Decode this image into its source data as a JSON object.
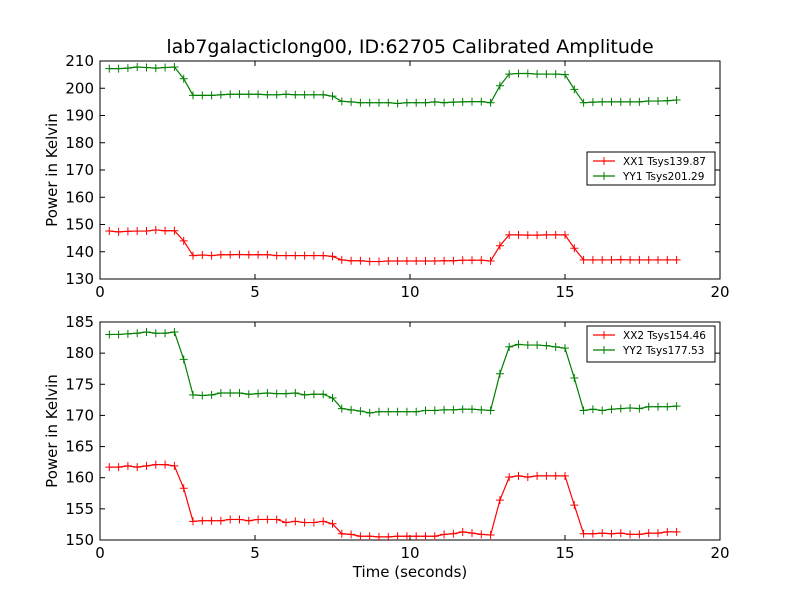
{
  "figure": {
    "title": "lab7galacticlong00, ID:62705 Calibrated Amplitude",
    "xlabel": "Time (seconds)"
  },
  "chart_data": [
    {
      "type": "line",
      "ylabel": "Power in Kelvin",
      "xlabel": "",
      "xlim": [
        0,
        20
      ],
      "ylim": [
        130,
        210
      ],
      "xticks": [
        0,
        5,
        10,
        15,
        20
      ],
      "yticks": [
        130,
        140,
        150,
        160,
        170,
        180,
        190,
        200,
        210
      ],
      "grid": false,
      "legend_position": "center-right",
      "x": [
        0.3,
        0.6,
        0.9,
        1.2,
        1.5,
        1.8,
        2.1,
        2.4,
        2.7,
        3.0,
        3.3,
        3.6,
        3.9,
        4.2,
        4.5,
        4.8,
        5.1,
        5.4,
        5.7,
        6.0,
        6.3,
        6.6,
        6.9,
        7.2,
        7.5,
        7.8,
        8.1,
        8.4,
        8.7,
        9.0,
        9.3,
        9.6,
        9.9,
        10.2,
        10.5,
        10.8,
        11.1,
        11.4,
        11.7,
        12.0,
        12.3,
        12.6,
        12.9,
        13.2,
        13.5,
        13.8,
        14.1,
        14.4,
        14.7,
        15.0,
        15.3,
        15.6,
        15.9,
        16.2,
        16.5,
        16.8,
        17.1,
        17.4,
        17.7,
        18.0,
        18.3,
        18.6
      ],
      "series": [
        {
          "name": "XX1 Tsys139.87",
          "color": "#ff0000",
          "values": [
            147.6,
            147.3,
            147.5,
            147.6,
            147.6,
            148.0,
            147.7,
            147.7,
            144.0,
            138.6,
            138.8,
            138.6,
            138.9,
            138.9,
            139.0,
            138.9,
            138.9,
            138.9,
            138.6,
            138.6,
            138.6,
            138.6,
            138.6,
            138.6,
            138.3,
            137.0,
            136.7,
            136.7,
            136.4,
            136.4,
            136.6,
            136.6,
            136.6,
            136.6,
            136.6,
            136.6,
            136.7,
            136.7,
            136.9,
            136.9,
            136.9,
            136.6,
            142.2,
            146.2,
            146.2,
            146.1,
            146.1,
            146.2,
            146.2,
            146.2,
            141.3,
            137.0,
            137.0,
            137.0,
            137.0,
            137.1,
            137.0,
            137.0,
            137.0,
            137.0,
            137.0,
            137.0
          ]
        },
        {
          "name": "YY1 Tsys201.29",
          "color": "#008000",
          "values": [
            207.2,
            207.2,
            207.4,
            207.8,
            207.6,
            207.4,
            207.6,
            207.8,
            203.5,
            197.4,
            197.4,
            197.4,
            197.6,
            197.8,
            197.8,
            197.8,
            197.8,
            197.6,
            197.6,
            197.8,
            197.6,
            197.6,
            197.6,
            197.6,
            197.1,
            195.2,
            195.0,
            194.7,
            194.7,
            194.7,
            194.7,
            194.4,
            194.7,
            194.7,
            194.7,
            195.0,
            194.7,
            194.9,
            195.0,
            195.1,
            195.1,
            194.7,
            200.9,
            205.2,
            205.4,
            205.4,
            205.2,
            205.2,
            205.2,
            205.0,
            199.6,
            194.7,
            194.9,
            195.0,
            195.0,
            195.0,
            195.0,
            195.0,
            195.3,
            195.3,
            195.4,
            195.7
          ]
        }
      ]
    },
    {
      "type": "line",
      "ylabel": "Power in Kelvin",
      "xlabel": "Time (seconds)",
      "xlim": [
        0,
        20
      ],
      "ylim": [
        150,
        185
      ],
      "xticks": [
        0,
        5,
        10,
        15,
        20
      ],
      "yticks": [
        150,
        155,
        160,
        165,
        170,
        175,
        180,
        185
      ],
      "grid": false,
      "legend_position": "top-right",
      "x": [
        0.3,
        0.6,
        0.9,
        1.2,
        1.5,
        1.8,
        2.1,
        2.4,
        2.7,
        3.0,
        3.3,
        3.6,
        3.9,
        4.2,
        4.5,
        4.8,
        5.1,
        5.4,
        5.7,
        6.0,
        6.3,
        6.6,
        6.9,
        7.2,
        7.5,
        7.8,
        8.1,
        8.4,
        8.7,
        9.0,
        9.3,
        9.6,
        9.9,
        10.2,
        10.5,
        10.8,
        11.1,
        11.4,
        11.7,
        12.0,
        12.3,
        12.6,
        12.9,
        13.2,
        13.5,
        13.8,
        14.1,
        14.4,
        14.7,
        15.0,
        15.3,
        15.6,
        15.9,
        16.2,
        16.5,
        16.8,
        17.1,
        17.4,
        17.7,
        18.0,
        18.3,
        18.6
      ],
      "series": [
        {
          "name": "XX2 Tsys154.46",
          "color": "#ff0000",
          "values": [
            161.7,
            161.7,
            161.9,
            161.7,
            161.9,
            162.1,
            162.1,
            161.9,
            158.3,
            153.0,
            153.1,
            153.1,
            153.1,
            153.3,
            153.3,
            153.1,
            153.3,
            153.3,
            153.3,
            152.8,
            153.0,
            152.8,
            152.8,
            153.0,
            152.6,
            151.0,
            150.9,
            150.6,
            150.6,
            150.5,
            150.5,
            150.6,
            150.6,
            150.6,
            150.6,
            150.6,
            150.9,
            151.0,
            151.3,
            151.1,
            150.9,
            150.8,
            156.4,
            160.1,
            160.3,
            160.1,
            160.3,
            160.3,
            160.3,
            160.3,
            155.6,
            151.0,
            151.0,
            151.1,
            151.0,
            151.1,
            150.9,
            150.9,
            151.1,
            151.1,
            151.3,
            151.3
          ]
        },
        {
          "name": "YY2 Tsys177.53",
          "color": "#008000",
          "values": [
            183.0,
            183.0,
            183.1,
            183.2,
            183.4,
            183.2,
            183.2,
            183.4,
            179.0,
            173.3,
            173.2,
            173.3,
            173.6,
            173.6,
            173.6,
            173.4,
            173.5,
            173.6,
            173.5,
            173.5,
            173.6,
            173.3,
            173.4,
            173.4,
            172.8,
            171.1,
            170.9,
            170.7,
            170.4,
            170.6,
            170.6,
            170.6,
            170.6,
            170.6,
            170.8,
            170.8,
            170.9,
            170.9,
            171.0,
            171.0,
            170.9,
            170.8,
            176.7,
            181.0,
            181.4,
            181.3,
            181.3,
            181.2,
            181.0,
            180.8,
            176.0,
            170.8,
            171.0,
            170.8,
            171.0,
            171.1,
            171.2,
            171.1,
            171.4,
            171.4,
            171.4,
            171.5
          ]
        }
      ]
    }
  ]
}
